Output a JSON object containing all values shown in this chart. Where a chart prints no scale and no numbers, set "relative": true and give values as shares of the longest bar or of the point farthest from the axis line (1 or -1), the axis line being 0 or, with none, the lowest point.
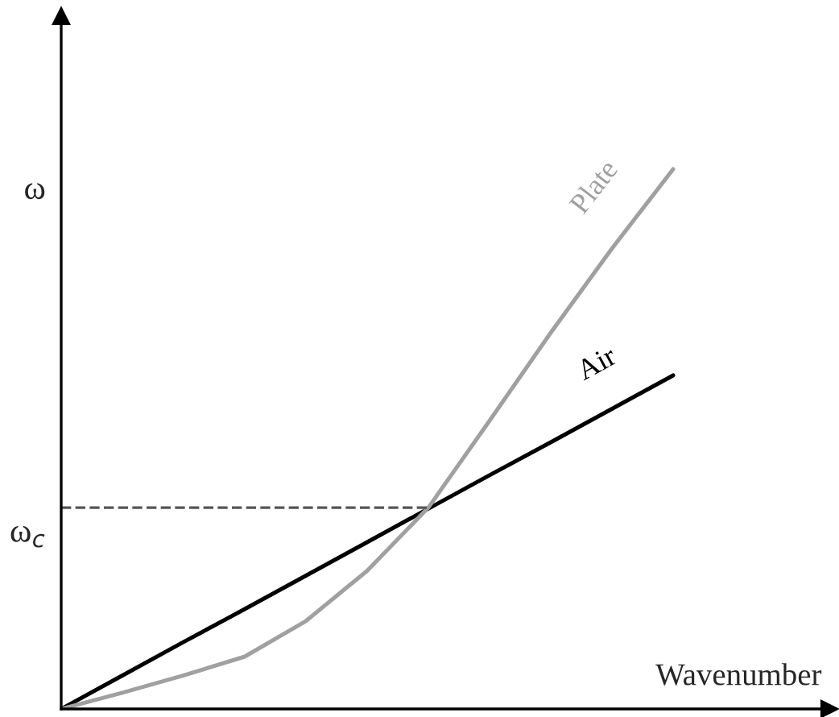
{
  "chart_data": {
    "type": "line",
    "relative": true,
    "xlabel": "Wavenumber",
    "categories": [
      null,
      null,
      null,
      null,
      null,
      null,
      null,
      null,
      null,
      null,
      null
    ],
    "series": [
      {
        "name": "Air",
        "color": "#000000",
        "values": [
          0,
          0.062,
          0.124,
          0.185,
          0.247,
          0.309,
          0.371,
          0.433,
          0.494,
          0.556,
          0.618
        ]
      },
      {
        "name": "Plate",
        "color": "#a0a0a0",
        "values": [
          0,
          0.03,
          0.062,
          0.097,
          0.163,
          0.256,
          0.373,
          0.534,
          0.697,
          0.853,
          1
        ]
      }
    ],
    "ylabel": "ω",
    "ref_lines": [
      {
        "axis": "y",
        "value": 0.373,
        "label": "ω$_{c}$",
        "color": "#555555",
        "line_style": "dashed"
      }
    ],
    "legend": false,
    "marker": "none",
    "line_style": "solid"
  }
}
